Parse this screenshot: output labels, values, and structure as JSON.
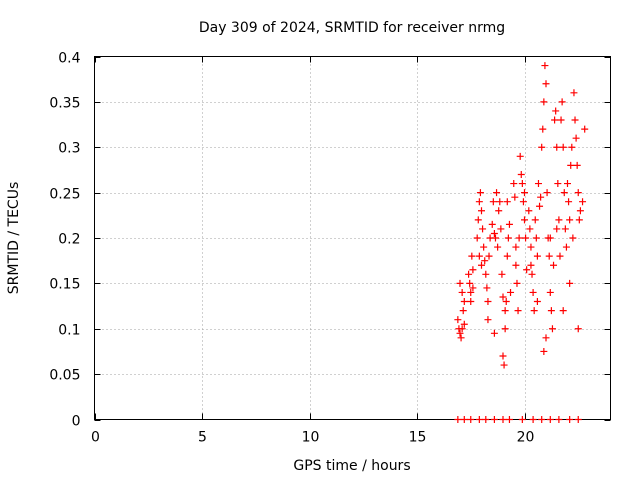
{
  "chart_data": {
    "type": "scatter",
    "title": "Day 309 of 2024, SRMTID for receiver nrmg",
    "xlabel": "GPS time / hours",
    "ylabel": "SRMTID / TECUs",
    "xlim": [
      0,
      24
    ],
    "ylim": [
      0,
      0.4
    ],
    "x_ticks": [
      0,
      5,
      10,
      15,
      20
    ],
    "x_tick_labels": [
      "0",
      "5",
      "10",
      "15",
      "20"
    ],
    "y_ticks": [
      0,
      0.05,
      0.1,
      0.15,
      0.2,
      0.25,
      0.3,
      0.35,
      0.4
    ],
    "y_tick_labels": [
      "0",
      "0.05",
      "0.1",
      "0.15",
      "0.2",
      "0.25",
      "0.3",
      "0.35",
      "0.4"
    ],
    "grid": true,
    "marker": "+",
    "series": [
      {
        "name": "SRMTID",
        "color": "#ff0000",
        "x": [
          16.9,
          16.95,
          17.0,
          17.05,
          17.1,
          17.15,
          17.2,
          17.0,
          17.1,
          17.2,
          17.4,
          17.45,
          17.5,
          17.55,
          17.6,
          17.5,
          17.6,
          17.8,
          17.85,
          17.9,
          17.95,
          18.0,
          17.9,
          18.0,
          18.05,
          18.1,
          18.15,
          18.2,
          18.25,
          18.3,
          18.35,
          18.4,
          18.3,
          18.5,
          18.55,
          18.6,
          18.65,
          18.7,
          18.6,
          18.75,
          18.8,
          18.85,
          18.9,
          18.95,
          19.0,
          19.05,
          19.1,
          19.0,
          19.1,
          19.15,
          19.2,
          19.25,
          19.3,
          19.2,
          19.35,
          19.5,
          19.55,
          19.6,
          19.65,
          19.7,
          19.75,
          19.6,
          19.8,
          19.85,
          19.9,
          19.95,
          20.0,
          20.05,
          20.1,
          20.0,
          20.2,
          20.25,
          20.3,
          20.35,
          20.4,
          20.45,
          20.3,
          20.5,
          20.55,
          20.6,
          20.65,
          20.7,
          20.75,
          20.6,
          20.8,
          20.85,
          20.9,
          20.95,
          21.0,
          21.05,
          20.9,
          21.0,
          21.1,
          21.15,
          21.2,
          21.25,
          21.3,
          21.35,
          21.2,
          21.4,
          21.45,
          21.5,
          21.55,
          21.6,
          21.65,
          21.5,
          21.7,
          21.75,
          21.8,
          21.85,
          21.9,
          21.95,
          21.8,
          22.0,
          22.05,
          22.1,
          22.15,
          22.2,
          22.25,
          22.1,
          22.3,
          22.35,
          22.4,
          22.45,
          22.5,
          22.55,
          22.6,
          22.7,
          22.8,
          22.5,
          16.9,
          17.2,
          17.5,
          17.9,
          18.2,
          18.6,
          19.0,
          19.3,
          19.9,
          20.4,
          20.8,
          21.2,
          21.6,
          22.1,
          22.5
        ],
        "y": [
          0.11,
          0.1,
          0.095,
          0.09,
          0.1,
          0.12,
          0.13,
          0.15,
          0.14,
          0.105,
          0.16,
          0.15,
          0.14,
          0.18,
          0.145,
          0.13,
          0.165,
          0.2,
          0.22,
          0.24,
          0.25,
          0.23,
          0.18,
          0.17,
          0.21,
          0.19,
          0.175,
          0.16,
          0.145,
          0.13,
          0.18,
          0.2,
          0.11,
          0.215,
          0.24,
          0.205,
          0.2,
          0.25,
          0.095,
          0.19,
          0.23,
          0.24,
          0.21,
          0.16,
          0.07,
          0.06,
          0.1,
          0.135,
          0.12,
          0.13,
          0.18,
          0.2,
          0.215,
          0.24,
          0.14,
          0.26,
          0.245,
          0.19,
          0.15,
          0.12,
          0.2,
          0.17,
          0.29,
          0.27,
          0.26,
          0.24,
          0.22,
          0.2,
          0.165,
          0.25,
          0.23,
          0.21,
          0.19,
          0.16,
          0.14,
          0.12,
          0.17,
          0.22,
          0.2,
          0.18,
          0.26,
          0.235,
          0.245,
          0.13,
          0.3,
          0.32,
          0.35,
          0.39,
          0.37,
          0.25,
          0.075,
          0.09,
          0.2,
          0.18,
          0.14,
          0.12,
          0.1,
          0.17,
          0.2,
          0.33,
          0.34,
          0.3,
          0.26,
          0.22,
          0.18,
          0.21,
          0.33,
          0.35,
          0.3,
          0.25,
          0.21,
          0.19,
          0.12,
          0.26,
          0.24,
          0.22,
          0.28,
          0.3,
          0.2,
          0.15,
          0.36,
          0.33,
          0.31,
          0.28,
          0.25,
          0.22,
          0.23,
          0.24,
          0.32,
          0.1,
          0,
          0,
          0,
          0,
          0,
          0,
          0,
          0,
          0,
          0,
          0,
          0,
          0,
          0,
          0
        ]
      }
    ]
  }
}
